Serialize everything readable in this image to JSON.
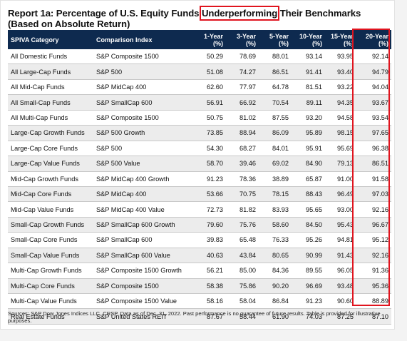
{
  "title": {
    "prefix": "Report 1a: Percentage of U.S. Equity Funds ",
    "highlight": "Underperforming",
    "suffix": " Their Benchmarks (Based on Absolute Return)"
  },
  "table": {
    "headers": {
      "category": "SPIVA Category",
      "index": "Comparison Index",
      "y1": "1-Year (%)",
      "y3": "3-Year (%)",
      "y5": "5-Year (%)",
      "y10": "10-Year (%)",
      "y15": "15-Year (%)",
      "y20": "20-Year (%)"
    },
    "rows": [
      {
        "category": "All Domestic Funds",
        "index": "S&P Composite 1500",
        "y1": "50.29",
        "y3": "78.69",
        "y5": "88.01",
        "y10": "93.14",
        "y15": "93.95",
        "y20": "92.14"
      },
      {
        "category": "All Large-Cap Funds",
        "index": "S&P 500",
        "y1": "51.08",
        "y3": "74.27",
        "y5": "86.51",
        "y10": "91.41",
        "y15": "93.40",
        "y20": "94.79"
      },
      {
        "category": "All Mid-Cap Funds",
        "index": "S&P MidCap 400",
        "y1": "62.60",
        "y3": "77.97",
        "y5": "64.78",
        "y10": "81.51",
        "y15": "93.22",
        "y20": "94.04"
      },
      {
        "category": "All Small-Cap Funds",
        "index": "S&P SmallCap 600",
        "y1": "56.91",
        "y3": "66.92",
        "y5": "70.54",
        "y10": "89.11",
        "y15": "94.35",
        "y20": "93.67"
      },
      {
        "category": "All Multi-Cap Funds",
        "index": "S&P Composite 1500",
        "y1": "50.75",
        "y3": "81.02",
        "y5": "87.55",
        "y10": "93.20",
        "y15": "94.58",
        "y20": "93.54"
      },
      {
        "category": "Large-Cap Growth Funds",
        "index": "S&P 500 Growth",
        "y1": "73.85",
        "y3": "88.94",
        "y5": "86.09",
        "y10": "95.89",
        "y15": "98.15",
        "y20": "97.65"
      },
      {
        "category": "Large-Cap Core Funds",
        "index": "S&P 500",
        "y1": "54.30",
        "y3": "68.27",
        "y5": "84.01",
        "y10": "95.91",
        "y15": "95.69",
        "y20": "96.38"
      },
      {
        "category": "Large-Cap Value Funds",
        "index": "S&P 500 Value",
        "y1": "58.70",
        "y3": "39.46",
        "y5": "69.02",
        "y10": "84.90",
        "y15": "79.13",
        "y20": "86.51"
      },
      {
        "category": "Mid-Cap Growth Funds",
        "index": "S&P MidCap 400 Growth",
        "y1": "91.23",
        "y3": "78.36",
        "y5": "38.89",
        "y10": "65.87",
        "y15": "91.00",
        "y20": "91.58"
      },
      {
        "category": "Mid-Cap Core Funds",
        "index": "S&P MidCap 400",
        "y1": "53.66",
        "y3": "70.75",
        "y5": "78.15",
        "y10": "88.43",
        "y15": "96.49",
        "y20": "97.03"
      },
      {
        "category": "Mid-Cap Value Funds",
        "index": "S&P MidCap 400 Value",
        "y1": "72.73",
        "y3": "81.82",
        "y5": "83.93",
        "y10": "95.65",
        "y15": "93.00",
        "y20": "92.16"
      },
      {
        "category": "Small-Cap Growth Funds",
        "index": "S&P SmallCap 600 Growth",
        "y1": "79.60",
        "y3": "75.76",
        "y5": "58.60",
        "y10": "84.50",
        "y15": "95.43",
        "y20": "96.67"
      },
      {
        "category": "Small-Cap Core Funds",
        "index": "S&P SmallCap 600",
        "y1": "39.83",
        "y3": "65.48",
        "y5": "76.33",
        "y10": "95.26",
        "y15": "94.81",
        "y20": "95.12"
      },
      {
        "category": "Small-Cap Value Funds",
        "index": "S&P SmallCap 600 Value",
        "y1": "40.63",
        "y3": "43.84",
        "y5": "80.65",
        "y10": "90.99",
        "y15": "91.43",
        "y20": "92.16"
      },
      {
        "category": "Multi-Cap Growth Funds",
        "index": "S&P Composite 1500 Growth",
        "y1": "56.21",
        "y3": "85.00",
        "y5": "84.36",
        "y10": "89.55",
        "y15": "96.05",
        "y20": "91.36"
      },
      {
        "category": "Multi-Cap Core Funds",
        "index": "S&P Composite 1500",
        "y1": "58.38",
        "y3": "75.86",
        "y5": "90.20",
        "y10": "96.69",
        "y15": "93.48",
        "y20": "95.36"
      },
      {
        "category": "Multi-Cap Value Funds",
        "index": "S&P Composite 1500 Value",
        "y1": "58.16",
        "y3": "58.04",
        "y5": "86.84",
        "y10": "91.23",
        "y15": "90.60",
        "y20": "88.89"
      },
      {
        "category": "Real Estate Funds",
        "index": "S&P United States REIT",
        "y1": "87.67",
        "y3": "58.44",
        "y5": "61.90",
        "y10": "74.03",
        "y15": "87.25",
        "y20": "87.10"
      }
    ]
  },
  "footnote": "Sources: S&P Dow Jones Indices LLC, CRSP. Data as of Dec. 31, 2022. Past performance is no guarantee of future results. Table is provided for illustrative purposes.",
  "colors": {
    "header_bg": "#0e2a4f",
    "highlight": "#e0141e",
    "alt_row": "#ececec"
  }
}
